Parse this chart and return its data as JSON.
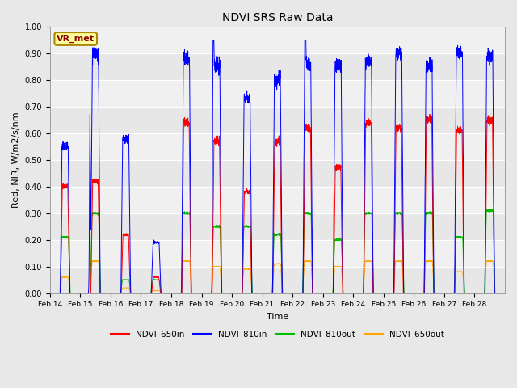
{
  "title": "NDVI SRS Raw Data",
  "xlabel": "Time",
  "ylabel": "Red, NIR, W/m2/s/nm",
  "ylim": [
    0.0,
    1.0
  ],
  "yticks": [
    0.0,
    0.1,
    0.2,
    0.3,
    0.4,
    0.5,
    0.6,
    0.7,
    0.8,
    0.9,
    1.0
  ],
  "annotation_text": "VR_met",
  "annotation_color": "#8B0000",
  "annotation_bg": "#FFFF99",
  "bg_color": "#E8E8E8",
  "plot_bg_color": "#F0F0F0",
  "series": {
    "NDVI_650in": {
      "color": "#FF0000",
      "label": "NDVI_650in"
    },
    "NDVI_810in": {
      "color": "#0000FF",
      "label": "NDVI_810in"
    },
    "NDVI_810out": {
      "color": "#00BB00",
      "label": "NDVI_810out"
    },
    "NDVI_650out": {
      "color": "#FFA500",
      "label": "NDVI_650out"
    }
  },
  "xtick_labels": [
    "Feb 14",
    "Feb 15",
    "Feb 16",
    "Feb 17",
    "Feb 18",
    "Feb 19",
    "Feb 20",
    "Feb 21",
    "Feb 22",
    "Feb 23",
    "Feb 24",
    "Feb 25",
    "Feb 26",
    "Feb 27",
    "Feb 28"
  ],
  "peak_810": [
    0.55,
    0.9,
    0.58,
    0.19,
    0.88,
    0.85,
    0.73,
    0.8,
    0.86,
    0.85,
    0.87,
    0.9,
    0.85,
    0.9,
    0.89
  ],
  "peak_650": [
    0.4,
    0.42,
    0.22,
    0.06,
    0.64,
    0.57,
    0.38,
    0.57,
    0.62,
    0.47,
    0.64,
    0.62,
    0.65,
    0.61,
    0.65
  ],
  "peak_810out": [
    0.21,
    0.3,
    0.05,
    0.05,
    0.3,
    0.25,
    0.25,
    0.22,
    0.3,
    0.2,
    0.3,
    0.3,
    0.3,
    0.21,
    0.31
  ],
  "peak_650out": [
    0.06,
    0.12,
    0.02,
    0.01,
    0.12,
    0.1,
    0.09,
    0.11,
    0.12,
    0.1,
    0.12,
    0.12,
    0.12,
    0.08,
    0.12
  ],
  "days": 15,
  "ppd": 288
}
